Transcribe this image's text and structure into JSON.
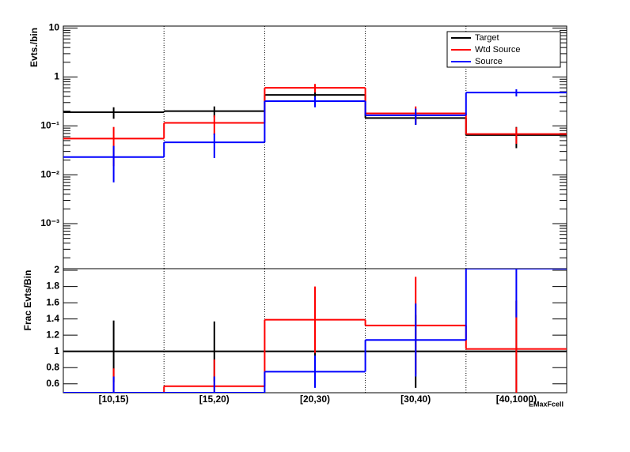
{
  "chart_data": [
    {
      "type": "hist-step",
      "ylabel": "Evts./bin",
      "log": true,
      "ylim": [
        0.00012,
        11
      ],
      "yticks": [
        {
          "value": 0.001,
          "label": "10⁻³"
        },
        {
          "value": 0.01,
          "label": "10⁻²"
        },
        {
          "value": 0.1,
          "label": "10⁻¹"
        },
        1,
        10
      ],
      "xgrid": true,
      "legend": "top-right",
      "series": [
        {
          "name": "Target",
          "color": "#000000",
          "values": [
            0.19,
            0.2,
            0.43,
            0.145,
            0.065
          ],
          "errors": [
            0.05,
            0.05,
            0.1,
            0.04,
            0.03
          ]
        },
        {
          "name": "Wtd Source",
          "color": "#ff0000",
          "values": [
            0.055,
            0.115,
            0.6,
            0.18,
            0.068
          ],
          "errors": [
            0.04,
            0.05,
            0.12,
            0.07,
            0.025
          ]
        },
        {
          "name": "Source",
          "color": "#0000ff",
          "values": [
            0.023,
            0.046,
            0.32,
            0.165,
            0.48
          ],
          "errors": [
            0.016,
            0.024,
            0.08,
            0.06,
            0.08
          ]
        }
      ]
    },
    {
      "type": "hist-step",
      "ylabel": "Frac Evts/Bin",
      "log": false,
      "xlabel": "EMaxFcell",
      "categories": [
        "[10,15)",
        "[15,20)",
        "[20,30)",
        "[30,40)",
        "[40,1000)"
      ],
      "ylim": [
        0.49,
        2.02
      ],
      "yticks": [
        0.6,
        0.8,
        1,
        1.2,
        1.4,
        1.6,
        1.8,
        2
      ],
      "xgrid": true,
      "series": [
        {
          "color": "#000000",
          "values": [
            1,
            1,
            1,
            1,
            1
          ],
          "errors": [
            0.38,
            0.37,
            0.25,
            0.45,
            0.62
          ]
        },
        {
          "color": "#ff0000",
          "values": [
            0.49,
            0.57,
            1.39,
            1.32,
            1.03
          ],
          "errors": [
            0.3,
            0.33,
            0.41,
            0.6,
            0.6
          ]
        },
        {
          "color": "#0000ff",
          "values": [
            0.49,
            0.49,
            0.75,
            1.14,
            2.02
          ],
          "errors": [
            0.2,
            0.2,
            0.2,
            0.45,
            0.6
          ]
        }
      ]
    }
  ]
}
